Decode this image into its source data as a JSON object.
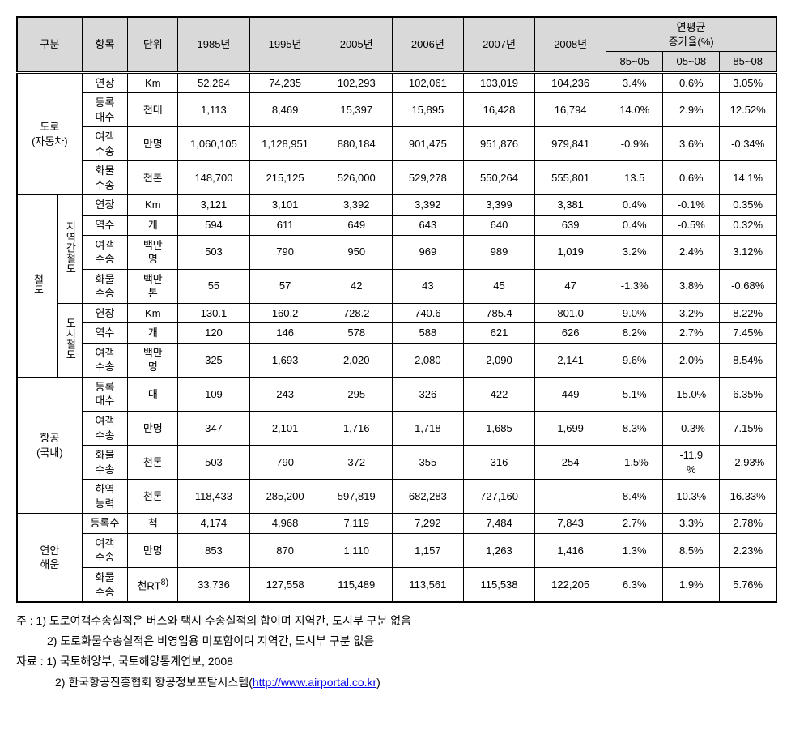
{
  "header": {
    "gubun": "구분",
    "item": "항목",
    "unit": "단위",
    "years": [
      "1985년",
      "1995년",
      "2005년",
      "2006년",
      "2007년",
      "2008년"
    ],
    "avg_title": "연평균\n증가율(%)",
    "avg_cols": [
      "85~05",
      "05~08",
      "85~08"
    ]
  },
  "groups": [
    {
      "label": "도로\n(자동차)",
      "subs": [
        {
          "label": null,
          "rows": [
            {
              "item": "연장",
              "unit": "Km",
              "vals": [
                "52,264",
                "74,235",
                "102,293",
                "102,061",
                "103,019",
                "104,236"
              ],
              "rates": [
                "3.4%",
                "0.6%",
                "3.05%"
              ]
            },
            {
              "item": "등록\n대수",
              "unit": "천대",
              "vals": [
                "1,113",
                "8,469",
                "15,397",
                "15,895",
                "16,428",
                "16,794"
              ],
              "rates": [
                "14.0%",
                "2.9%",
                "12.52%"
              ]
            },
            {
              "item": "여객\n수송",
              "unit": "만명",
              "vals": [
                "1,060,105",
                "1,128,951",
                "880,184",
                "901,475",
                "951,876",
                "979,841"
              ],
              "rates": [
                "-0.9%",
                "3.6%",
                "-0.34%"
              ]
            },
            {
              "item": "화물\n수송",
              "unit": "천톤",
              "vals": [
                "148,700",
                "215,125",
                "526,000",
                "529,278",
                "550,264",
                "555,801"
              ],
              "rates": [
                "13.5",
                "0.6%",
                "14.1%"
              ]
            }
          ]
        }
      ]
    },
    {
      "label": "철도",
      "vertical": true,
      "subs": [
        {
          "label": "지역간철도",
          "vertical": true,
          "rows": [
            {
              "item": "연장",
              "unit": "Km",
              "vals": [
                "3,121",
                "3,101",
                "3,392",
                "3,392",
                "3,399",
                "3,381"
              ],
              "rates": [
                "0.4%",
                "-0.1%",
                "0.35%"
              ]
            },
            {
              "item": "역수",
              "unit": "개",
              "vals": [
                "594",
                "611",
                "649",
                "643",
                "640",
                "639"
              ],
              "rates": [
                "0.4%",
                "-0.5%",
                "0.32%"
              ]
            },
            {
              "item": "여객\n수송",
              "unit": "백만\n명",
              "vals": [
                "503",
                "790",
                "950",
                "969",
                "989",
                "1,019"
              ],
              "rates": [
                "3.2%",
                "2.4%",
                "3.12%"
              ]
            },
            {
              "item": "화물\n수송",
              "unit": "백만\n톤",
              "vals": [
                "55",
                "57",
                "42",
                "43",
                "45",
                "47"
              ],
              "rates": [
                "-1.3%",
                "3.8%",
                "-0.68%"
              ]
            }
          ]
        },
        {
          "label": "도시철도",
          "vertical": true,
          "rows": [
            {
              "item": "연장",
              "unit": "Km",
              "vals": [
                "130.1",
                "160.2",
                "728.2",
                "740.6",
                "785.4",
                "801.0"
              ],
              "rates": [
                "9.0%",
                "3.2%",
                "8.22%"
              ]
            },
            {
              "item": "역수",
              "unit": "개",
              "vals": [
                "120",
                "146",
                "578",
                "588",
                "621",
                "626"
              ],
              "rates": [
                "8.2%",
                "2.7%",
                "7.45%"
              ]
            },
            {
              "item": "여객\n수송",
              "unit": "백만\n명",
              "vals": [
                "325",
                "1,693",
                "2,020",
                "2,080",
                "2,090",
                "2,141"
              ],
              "rates": [
                "9.6%",
                "2.0%",
                "8.54%"
              ]
            }
          ]
        }
      ]
    },
    {
      "label": "항공\n(국내)",
      "subs": [
        {
          "label": null,
          "rows": [
            {
              "item": "등록\n대수",
              "unit": "대",
              "vals": [
                "109",
                "243",
                "295",
                "326",
                "422",
                "449"
              ],
              "rates": [
                "5.1%",
                "15.0%",
                "6.35%"
              ]
            },
            {
              "item": "여객\n수송",
              "unit": "만명",
              "vals": [
                "347",
                "2,101",
                "1,716",
                "1,718",
                "1,685",
                "1,699"
              ],
              "rates": [
                "8.3%",
                "-0.3%",
                "7.15%"
              ]
            },
            {
              "item": "화물\n수송",
              "unit": "천톤",
              "vals": [
                "503",
                "790",
                "372",
                "355",
                "316",
                "254"
              ],
              "rates": [
                "-1.5%",
                "-11.9\n%",
                "-2.93%"
              ]
            },
            {
              "item": "하역\n능력",
              "unit": "천톤",
              "vals": [
                "118,433",
                "285,200",
                "597,819",
                "682,283",
                "727,160",
                "-"
              ],
              "rates": [
                "8.4%",
                "10.3%",
                "16.33%"
              ]
            }
          ]
        }
      ]
    },
    {
      "label": "연안\n해운",
      "subs": [
        {
          "label": null,
          "rows": [
            {
              "item": "등록수",
              "unit": "척",
              "vals": [
                "4,174",
                "4,968",
                "7,119",
                "7,292",
                "7,484",
                "7,843"
              ],
              "rates": [
                "2.7%",
                "3.3%",
                "2.78%"
              ]
            },
            {
              "item": "여객\n수송",
              "unit": "만명",
              "vals": [
                "853",
                "870",
                "1,110",
                "1,157",
                "1,263",
                "1,416"
              ],
              "rates": [
                "1.3%",
                "8.5%",
                "2.23%"
              ]
            },
            {
              "item": "화물\n수송",
              "unit": "천RT<sup>8)</sup>",
              "vals": [
                "33,736",
                "127,558",
                "115,489",
                "113,561",
                "115,538",
                "122,205"
              ],
              "rates": [
                "6.3%",
                "1.9%",
                "5.76%"
              ]
            }
          ]
        }
      ]
    }
  ],
  "notes": {
    "n1_prefix": "주 : 1) ",
    "n1": "도로여객수송실적은 버스와 택시 수송실적의 합이며 지역간, 도시부 구분 없음",
    "n2_prefix": "2) ",
    "n2": "도로화물수송실적은 비영업용 미포함이며 지역간, 도시부 구분 없음",
    "s1_prefix": "자료 : 1) ",
    "s1": "국토해양부, 국토해양통계연보, 2008",
    "s2_prefix": "2) ",
    "s2": "한국항공진흥협회 항공정보포탈시스템",
    "url_text": "http://www.airportal.co.kr"
  }
}
